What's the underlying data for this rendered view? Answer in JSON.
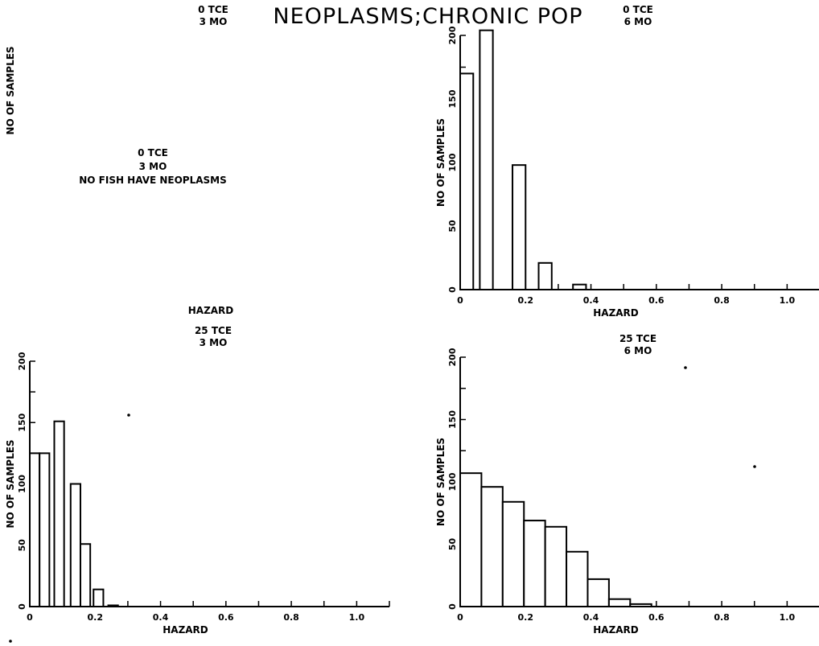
{
  "title": "NEOPLASMS;CHRONIC POP",
  "chart_data": [
    {
      "type": "bar",
      "header": [
        "0 TCE",
        "3 MO"
      ],
      "note": [
        "0 TCE",
        "3 MO",
        "NO FISH HAVE NEOPLASMS"
      ],
      "xlabel": "HAZARD",
      "ylabel": "NO OF SAMPLES",
      "xlim": [
        0,
        1.1
      ],
      "ylim": [
        0,
        200
      ],
      "xticks": [
        0,
        0.2,
        0.4,
        0.6,
        0.8,
        1.0
      ],
      "xtick_labels": [
        "0",
        "0.2",
        "0.4",
        "0.6",
        "0.8",
        "1.0"
      ],
      "yticks": [
        0,
        50,
        100,
        150,
        200
      ],
      "ytick_labels": [
        "0",
        "50",
        "100",
        "150",
        "200"
      ],
      "bin_width": 0.04,
      "bins": [],
      "show_axes": false
    },
    {
      "type": "bar",
      "header": [
        "0 TCE",
        "6 MO"
      ],
      "note": [],
      "xlabel": "HAZARD",
      "ylabel": "NO OF SAMPLES",
      "xlim": [
        0,
        1.1
      ],
      "ylim": [
        0,
        200
      ],
      "xticks": [
        0,
        0.2,
        0.4,
        0.6,
        0.8,
        1.0
      ],
      "xtick_labels": [
        "0",
        "0.2",
        "0.4",
        "0.6",
        "0.8",
        "1.0"
      ],
      "yticks": [
        0,
        50,
        100,
        150,
        200
      ],
      "ytick_labels": [
        "0",
        "50",
        "100",
        "150",
        "200"
      ],
      "bin_width": 0.04,
      "bins": [
        {
          "x": 0.0,
          "value": 170
        },
        {
          "x": 0.06,
          "value": 204
        },
        {
          "x": 0.16,
          "value": 98
        },
        {
          "x": 0.24,
          "value": 21
        },
        {
          "x": 0.345,
          "value": 4
        }
      ],
      "show_axes": true
    },
    {
      "type": "bar",
      "header": [
        "25 TCE",
        "3 MO"
      ],
      "note": [],
      "xlabel": "HAZARD",
      "ylabel": "NO OF SAMPLES",
      "xlim": [
        0,
        1.1
      ],
      "ylim": [
        0,
        200
      ],
      "xticks": [
        0,
        0.2,
        0.4,
        0.6,
        0.8,
        1.0
      ],
      "xtick_labels": [
        "0",
        "0.2",
        "0.4",
        "0.6",
        "0.8",
        "1.0"
      ],
      "yticks": [
        0,
        50,
        100,
        150,
        200
      ],
      "ytick_labels": [
        "0",
        "50",
        "100",
        "150",
        "200"
      ],
      "bin_width": 0.03,
      "bins": [
        {
          "x": 0.0,
          "value": 125
        },
        {
          "x": 0.03,
          "value": 125
        },
        {
          "x": 0.075,
          "value": 151
        },
        {
          "x": 0.125,
          "value": 100
        },
        {
          "x": 0.155,
          "value": 51
        },
        {
          "x": 0.195,
          "value": 14
        },
        {
          "x": 0.24,
          "value": 1
        }
      ],
      "show_axes": true
    },
    {
      "type": "bar",
      "header": [
        "25 TCE",
        "6 MO"
      ],
      "note": [],
      "xlabel": "HAZARD",
      "ylabel": "NO OF SAMPLES",
      "xlim": [
        0,
        1.1
      ],
      "ylim": [
        0,
        200
      ],
      "xticks": [
        0,
        0.2,
        0.4,
        0.6,
        0.8,
        1.0
      ],
      "xtick_labels": [
        "0",
        "0.2",
        "0.4",
        "0.6",
        "0.8",
        "1.0"
      ],
      "yticks": [
        0,
        50,
        100,
        150,
        200
      ],
      "ytick_labels": [
        "0",
        "50",
        "100",
        "150",
        "200"
      ],
      "bin_width": 0.065,
      "bins": [
        {
          "x": 0.0,
          "value": 107
        },
        {
          "x": 0.065,
          "value": 96
        },
        {
          "x": 0.13,
          "value": 84
        },
        {
          "x": 0.195,
          "value": 69
        },
        {
          "x": 0.26,
          "value": 64
        },
        {
          "x": 0.325,
          "value": 44
        },
        {
          "x": 0.39,
          "value": 22
        },
        {
          "x": 0.455,
          "value": 6
        },
        {
          "x": 0.52,
          "value": 2
        }
      ],
      "show_axes": true
    }
  ]
}
